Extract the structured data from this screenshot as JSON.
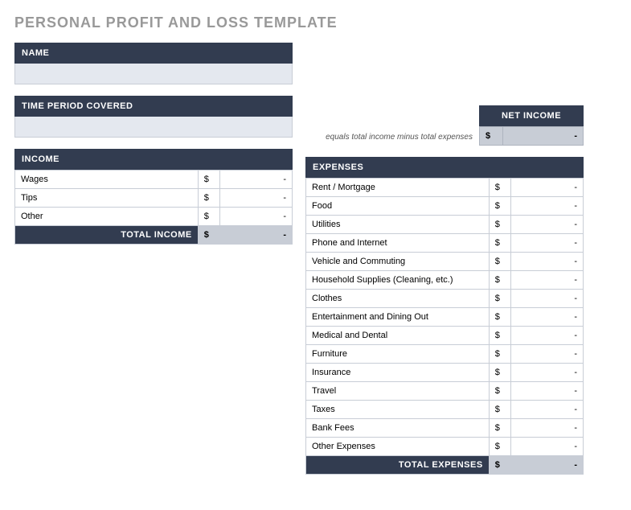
{
  "title": "PERSONAL PROFIT AND LOSS TEMPLATE",
  "name_section": {
    "header": "NAME",
    "value": ""
  },
  "period_section": {
    "header": "TIME PERIOD COVERED",
    "value": ""
  },
  "net_income": {
    "header": "NET INCOME",
    "note": "equals total income minus total expenses",
    "currency": "$",
    "value": "-"
  },
  "income": {
    "header": "INCOME",
    "rows": [
      {
        "label": "Wages",
        "currency": "$",
        "value": "-"
      },
      {
        "label": "Tips",
        "currency": "$",
        "value": "-"
      },
      {
        "label": "Other",
        "currency": "$",
        "value": "-"
      }
    ],
    "total_label": "TOTAL INCOME",
    "total_currency": "$",
    "total_value": "-"
  },
  "expenses": {
    "header": "EXPENSES",
    "rows": [
      {
        "label": "Rent / Mortgage",
        "currency": "$",
        "value": "-"
      },
      {
        "label": "Food",
        "currency": "$",
        "value": "-"
      },
      {
        "label": "Utilities",
        "currency": "$",
        "value": "-"
      },
      {
        "label": "Phone and Internet",
        "currency": "$",
        "value": "-"
      },
      {
        "label": "Vehicle and Commuting",
        "currency": "$",
        "value": "-"
      },
      {
        "label": "Household Supplies (Cleaning, etc.)",
        "currency": "$",
        "value": "-"
      },
      {
        "label": "Clothes",
        "currency": "$",
        "value": "-"
      },
      {
        "label": "Entertainment and Dining Out",
        "currency": "$",
        "value": "-"
      },
      {
        "label": "Medical and Dental",
        "currency": "$",
        "value": "-"
      },
      {
        "label": "Furniture",
        "currency": "$",
        "value": "-"
      },
      {
        "label": "Insurance",
        "currency": "$",
        "value": "-"
      },
      {
        "label": "Travel",
        "currency": "$",
        "value": "-"
      },
      {
        "label": "Taxes",
        "currency": "$",
        "value": "-"
      },
      {
        "label": "Bank Fees",
        "currency": "$",
        "value": "-"
      },
      {
        "label": "Other Expenses",
        "currency": "$",
        "value": "-"
      }
    ],
    "total_label": "TOTAL EXPENSES",
    "total_currency": "$",
    "total_value": "-"
  },
  "colors": {
    "header_bg": "#323c50",
    "header_text": "#ffffff",
    "input_bg": "#e4e8ef",
    "total_bg": "#c8cdd6",
    "border": "#c8cdd6",
    "title_text": "#999999"
  }
}
